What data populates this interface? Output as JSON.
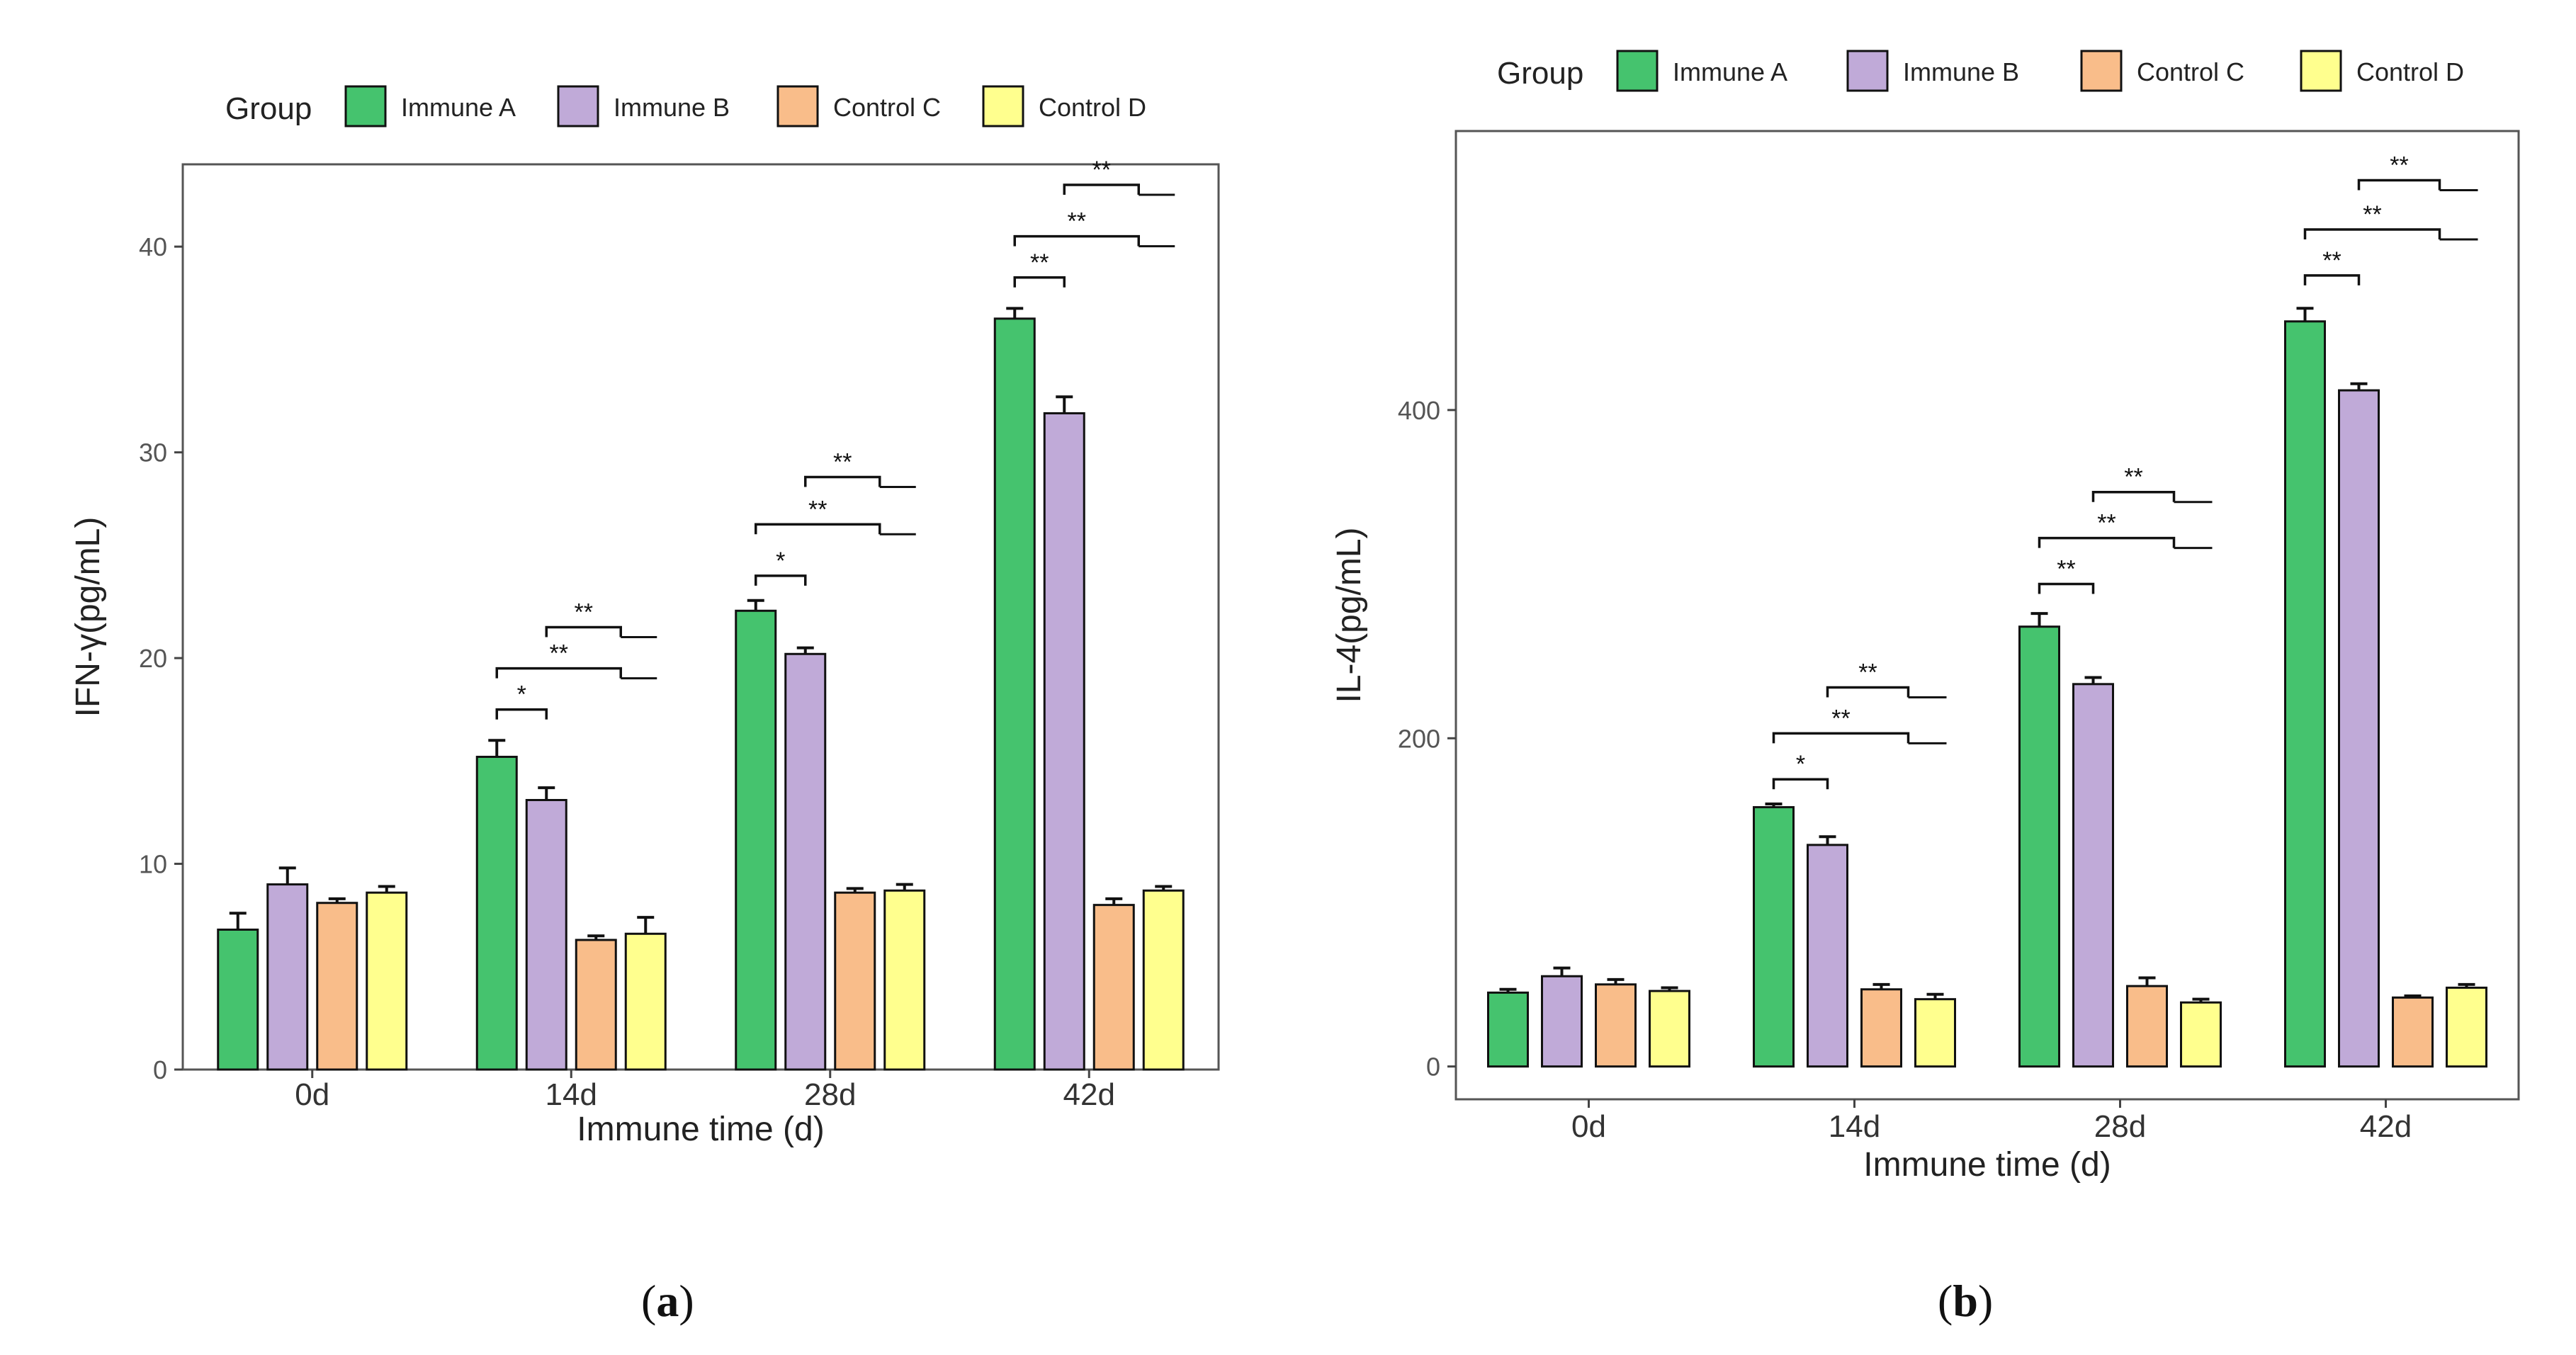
{
  "chart_data": [
    {
      "type": "bar",
      "panel_label": "a",
      "title": "",
      "legend_title": "Group",
      "legend_position": "top",
      "categories": [
        "0d",
        "14d",
        "28d",
        "42d"
      ],
      "series": [
        {
          "name": "Immune A",
          "color": "#45C36E",
          "values": [
            6.8,
            15.2,
            22.3,
            36.5
          ],
          "errors": [
            0.8,
            0.8,
            0.5,
            0.5
          ]
        },
        {
          "name": "Immune B",
          "color": "#C0AAD8",
          "values": [
            9.0,
            13.1,
            20.2,
            31.9
          ],
          "errors": [
            0.8,
            0.6,
            0.3,
            0.8
          ]
        },
        {
          "name": "Control C",
          "color": "#F9BD8A",
          "values": [
            8.1,
            6.3,
            8.6,
            8.0
          ],
          "errors": [
            0.2,
            0.2,
            0.2,
            0.3
          ]
        },
        {
          "name": "Control D",
          "color": "#FFFF8E",
          "values": [
            8.6,
            6.6,
            8.7,
            8.7
          ],
          "errors": [
            0.3,
            0.8,
            0.3,
            0.2
          ]
        }
      ],
      "xlabel": "Immune time (d)",
      "ylabel": "IFN-γ(pg/mL)",
      "ylim": [
        0,
        44
      ],
      "yticks": [
        0,
        10,
        20,
        30,
        40
      ],
      "significance": [
        {
          "category": "14d",
          "from_series": 0,
          "to_series": 1,
          "label": "*",
          "y": 17.5
        },
        {
          "category": "14d",
          "from_series": 0,
          "to_series": [
            2,
            3
          ],
          "label": "**",
          "y": 19.5
        },
        {
          "category": "14d",
          "from_series": 1,
          "to_series": [
            2,
            3
          ],
          "label": "**",
          "y": 21.5
        },
        {
          "category": "28d",
          "from_series": 0,
          "to_series": 1,
          "label": "*",
          "y": 24.0
        },
        {
          "category": "28d",
          "from_series": 0,
          "to_series": [
            2,
            3
          ],
          "label": "**",
          "y": 26.5
        },
        {
          "category": "28d",
          "from_series": 1,
          "to_series": [
            2,
            3
          ],
          "label": "**",
          "y": 28.8
        },
        {
          "category": "42d",
          "from_series": 0,
          "to_series": 1,
          "label": "**",
          "y": 38.5
        },
        {
          "category": "42d",
          "from_series": 0,
          "to_series": [
            2,
            3
          ],
          "label": "**",
          "y": 40.5
        },
        {
          "category": "42d",
          "from_series": 1,
          "to_series": [
            2,
            3
          ],
          "label": "**",
          "y": 43.0
        }
      ]
    },
    {
      "type": "bar",
      "panel_label": "b",
      "title": "",
      "legend_title": "Group",
      "legend_position": "top",
      "categories": [
        "0d",
        "14d",
        "28d",
        "42d"
      ],
      "series": [
        {
          "name": "Immune A",
          "color": "#45C36E",
          "values": [
            45,
            158,
            268,
            454
          ],
          "errors": [
            2,
            2,
            8,
            8
          ]
        },
        {
          "name": "Immune B",
          "color": "#C0AAD8",
          "values": [
            55,
            135,
            233,
            412
          ],
          "errors": [
            5,
            5,
            4,
            4
          ]
        },
        {
          "name": "Control C",
          "color": "#F9BD8A",
          "values": [
            50,
            47,
            49,
            42
          ],
          "errors": [
            3,
            3,
            5,
            1
          ]
        },
        {
          "name": "Control D",
          "color": "#FFFF8E",
          "values": [
            46,
            41,
            39,
            48
          ],
          "errors": [
            2,
            3,
            2,
            2
          ]
        }
      ],
      "xlabel": "Immune time (d)",
      "ylabel": "IL-4(pg/mL)",
      "ylim": [
        -20,
        570
      ],
      "yticks": [
        0,
        200,
        400
      ],
      "significance": [
        {
          "category": "14d",
          "from_series": 0,
          "to_series": 1,
          "label": "*",
          "y": 175
        },
        {
          "category": "14d",
          "from_series": 0,
          "to_series": [
            2,
            3
          ],
          "label": "**",
          "y": 203
        },
        {
          "category": "14d",
          "from_series": 1,
          "to_series": [
            2,
            3
          ],
          "label": "**",
          "y": 231
        },
        {
          "category": "28d",
          "from_series": 0,
          "to_series": 1,
          "label": "**",
          "y": 294
        },
        {
          "category": "28d",
          "from_series": 0,
          "to_series": [
            2,
            3
          ],
          "label": "**",
          "y": 322
        },
        {
          "category": "28d",
          "from_series": 1,
          "to_series": [
            2,
            3
          ],
          "label": "**",
          "y": 350
        },
        {
          "category": "42d",
          "from_series": 0,
          "to_series": 1,
          "label": "**",
          "y": 482
        },
        {
          "category": "42d",
          "from_series": 0,
          "to_series": [
            2,
            3
          ],
          "label": "**",
          "y": 510
        },
        {
          "category": "42d",
          "from_series": 1,
          "to_series": [
            2,
            3
          ],
          "label": "**",
          "y": 540
        }
      ]
    }
  ],
  "captions": {
    "a": "a",
    "b": "b"
  }
}
